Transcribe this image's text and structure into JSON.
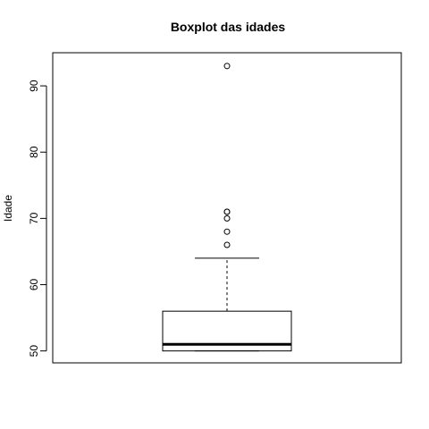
{
  "chart_data": {
    "type": "boxplot",
    "title": "Boxplot das idades",
    "xlabel": "",
    "ylabel": "Idade",
    "ylim": [
      48.2,
      95.0
    ],
    "yticks": [
      50,
      60,
      70,
      80,
      90
    ],
    "box": {
      "whisker_low": 50,
      "q1": 50,
      "median": 51,
      "q3": 56,
      "whisker_high": 64
    },
    "outliers": [
      66,
      68,
      70,
      71,
      71,
      93
    ]
  }
}
